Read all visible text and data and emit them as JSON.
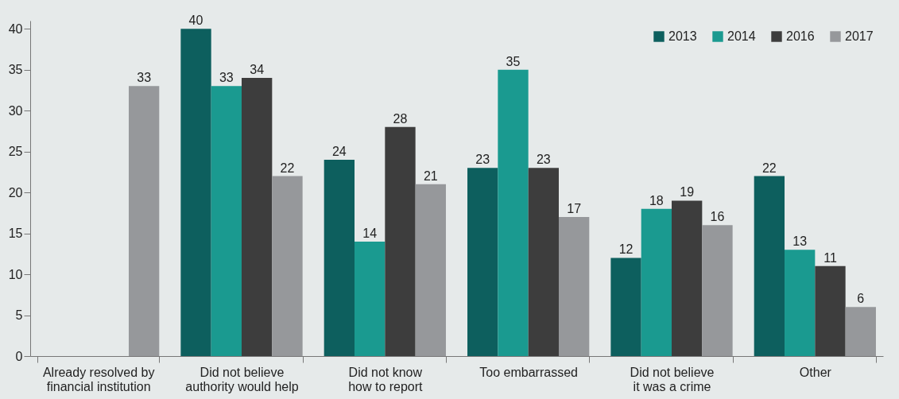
{
  "chart_data": {
    "type": "bar",
    "categories": [
      "Already resolved by financial institution",
      "Did not believe authority would help",
      "Did not know how to report",
      "Too embarrassed",
      "Did not believe it was a crime",
      "Other"
    ],
    "series": [
      {
        "name": "2013",
        "color": "#0d5f5e",
        "values": [
          null,
          40,
          24,
          23,
          12,
          22
        ]
      },
      {
        "name": "2014",
        "color": "#1a9a90",
        "values": [
          null,
          33,
          14,
          35,
          18,
          13
        ]
      },
      {
        "name": "2016",
        "color": "#3d3d3d",
        "values": [
          null,
          34,
          28,
          23,
          19,
          11
        ]
      },
      {
        "name": "2017",
        "color": "#96989b",
        "values": [
          33,
          22,
          21,
          17,
          16,
          6
        ]
      }
    ],
    "ylim": [
      0,
      41
    ],
    "yticks": [
      0,
      5,
      10,
      15,
      20,
      25,
      30,
      35,
      40
    ],
    "data_labels": true,
    "grid": false,
    "legend": "top right"
  }
}
